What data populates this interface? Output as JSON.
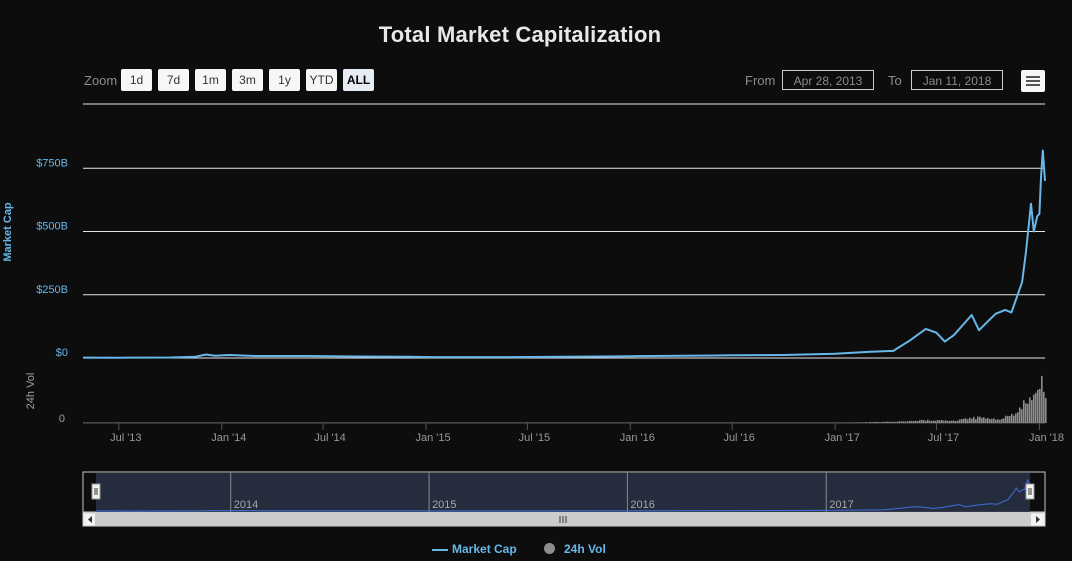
{
  "title": "Total Market Capitalization",
  "zoom": {
    "label": "Zoom",
    "buttons": [
      "1d",
      "7d",
      "1m",
      "3m",
      "1y",
      "YTD",
      "ALL"
    ],
    "active": "ALL"
  },
  "range": {
    "from_label": "From",
    "from_value": "Apr 28, 2013",
    "to_label": "To",
    "to_value": "Jan 11, 2018"
  },
  "colors": {
    "market_cap": "#67b7e8",
    "volume": "#8d8d8d",
    "background": "#0d0d0e"
  },
  "chart_data": {
    "type": "line",
    "title": "Total Market Capitalization",
    "ylabel": "Market Cap",
    "ylabel2": "24h Vol",
    "y_ticks": [
      "$0",
      "$250B",
      "$500B",
      "$750B"
    ],
    "y2_ticks": [
      "0"
    ],
    "ylim": [
      0,
      1000
    ],
    "x_ticks": [
      "Jul '13",
      "Jan '14",
      "Jul '14",
      "Jan '15",
      "Jul '15",
      "Jan '16",
      "Jul '16",
      "Jan '17",
      "Jul '17",
      "Jan '18"
    ],
    "navigator_ticks": [
      "2014",
      "2015",
      "2016",
      "2017"
    ],
    "series": [
      {
        "name": "Market Cap",
        "unit": "billion USD",
        "points": [
          [
            "2013-04-28",
            1.5
          ],
          [
            "2013-07-01",
            1.2
          ],
          [
            "2013-10-01",
            2.0
          ],
          [
            "2013-11-15",
            5
          ],
          [
            "2013-12-04",
            14
          ],
          [
            "2013-12-20",
            9
          ],
          [
            "2014-01-15",
            12
          ],
          [
            "2014-03-01",
            8
          ],
          [
            "2014-06-01",
            8
          ],
          [
            "2014-09-01",
            6
          ],
          [
            "2014-12-01",
            5
          ],
          [
            "2015-01-15",
            3.5
          ],
          [
            "2015-06-01",
            3.5
          ],
          [
            "2015-11-05",
            6
          ],
          [
            "2016-01-01",
            7
          ],
          [
            "2016-06-01",
            10
          ],
          [
            "2016-07-01",
            11
          ],
          [
            "2016-10-01",
            12
          ],
          [
            "2017-01-01",
            17
          ],
          [
            "2017-03-01",
            24
          ],
          [
            "2017-04-15",
            28
          ],
          [
            "2017-05-15",
            70
          ],
          [
            "2017-06-12",
            115
          ],
          [
            "2017-07-01",
            100
          ],
          [
            "2017-07-16",
            65
          ],
          [
            "2017-08-01",
            90
          ],
          [
            "2017-09-02",
            170
          ],
          [
            "2017-09-15",
            110
          ],
          [
            "2017-10-01",
            145
          ],
          [
            "2017-10-15",
            175
          ],
          [
            "2017-11-01",
            190
          ],
          [
            "2017-11-12",
            180
          ],
          [
            "2017-11-20",
            230
          ],
          [
            "2017-12-01",
            300
          ],
          [
            "2017-12-08",
            420
          ],
          [
            "2017-12-17",
            610
          ],
          [
            "2017-12-22",
            500
          ],
          [
            "2017-12-28",
            560
          ],
          [
            "2018-01-01",
            570
          ],
          [
            "2018-01-04",
            720
          ],
          [
            "2018-01-07",
            820
          ],
          [
            "2018-01-09",
            760
          ],
          [
            "2018-01-11",
            700
          ]
        ]
      },
      {
        "name": "24h Vol",
        "unit": "billion USD",
        "points": [
          [
            "2013-04-28",
            0.05
          ],
          [
            "2013-12-04",
            0.3
          ],
          [
            "2014-06-01",
            0.05
          ],
          [
            "2015-06-01",
            0.05
          ],
          [
            "2016-06-01",
            0.1
          ],
          [
            "2017-01-01",
            0.3
          ],
          [
            "2017-05-01",
            2
          ],
          [
            "2017-06-12",
            4
          ],
          [
            "2017-08-01",
            3
          ],
          [
            "2017-09-02",
            8
          ],
          [
            "2017-10-15",
            5
          ],
          [
            "2017-11-15",
            12
          ],
          [
            "2017-12-08",
            30
          ],
          [
            "2017-12-22",
            45
          ],
          [
            "2018-01-04",
            55
          ],
          [
            "2018-01-07",
            60
          ],
          [
            "2018-01-11",
            50
          ]
        ]
      }
    ],
    "legend": [
      "Market Cap",
      "24h Vol"
    ],
    "legend_position": "bottom-center",
    "grid": true
  }
}
